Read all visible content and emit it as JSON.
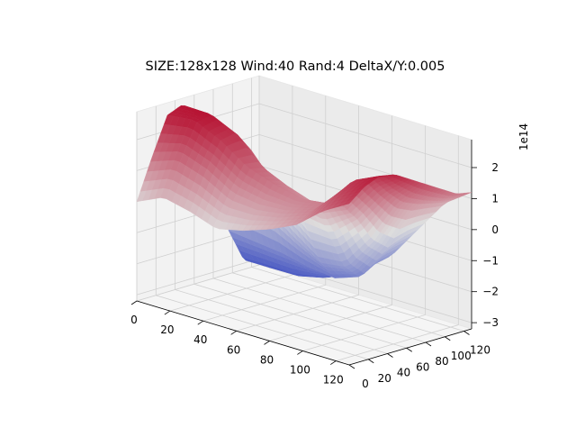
{
  "chart_data": {
    "type": "surface",
    "title": "SIZE:128x128 Wind:40 Rand:4 DeltaX/Y:0.005",
    "colormap": "coolwarm",
    "colors": {
      "low": "#3b4cc0",
      "mid": "#dddddd",
      "high": "#b40426"
    },
    "x_axis": {
      "ticks": [
        "0",
        "20",
        "40",
        "60",
        "80",
        "100",
        "120"
      ],
      "range": [
        0,
        128
      ]
    },
    "y_axis": {
      "ticks": [
        "0",
        "20",
        "40",
        "60",
        "80",
        "100",
        "120"
      ],
      "range": [
        0,
        128
      ]
    },
    "z_axis": {
      "ticks": [
        "−3",
        "−2",
        "−1",
        "0",
        "1",
        "2"
      ],
      "range": [
        -3.2,
        2.9
      ],
      "offset_label": "1e14"
    },
    "grid": true,
    "z_grid_values": [
      [
        0.0,
        1.3,
        2.5,
        2.7,
        2.2,
        0.3,
        -1.8,
        -2.9,
        -3.1
      ],
      [
        0.4,
        1.6,
        2.6,
        2.7,
        2.0,
        0.0,
        -1.9,
        -2.9,
        -3.1
      ],
      [
        0.2,
        1.3,
        2.2,
        2.3,
        1.6,
        -0.3,
        -2.0,
        -2.9,
        -3.0
      ],
      [
        -0.1,
        0.8,
        1.6,
        1.5,
        0.6,
        -1.0,
        -2.2,
        -2.7,
        -2.8
      ],
      [
        0.1,
        0.7,
        1.3,
        1.1,
        -0.2,
        -1.6,
        -2.3,
        -2.3,
        -2.3
      ],
      [
        0.4,
        0.8,
        1.1,
        0.8,
        -0.3,
        -1.5,
        -2.0,
        -1.7,
        -1.6
      ],
      [
        0.8,
        1.1,
        1.2,
        1.0,
        0.4,
        -0.4,
        -0.8,
        -0.6,
        -0.5
      ],
      [
        1.5,
        1.9,
        2.2,
        2.1,
        1.5,
        1.0,
        0.8,
        0.7,
        0.6
      ],
      [
        2.0,
        2.4,
        2.6,
        2.5,
        2.2,
        1.9,
        1.6,
        1.3,
        1.2
      ]
    ]
  }
}
